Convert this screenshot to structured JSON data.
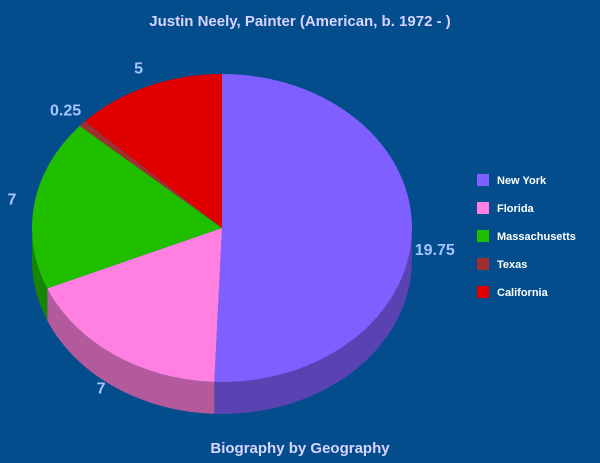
{
  "chart_data": {
    "type": "pie",
    "title": "Justin Neely, Painter (American, b. 1972 - )",
    "footer": "Biography by Geography",
    "categories": [
      "New York",
      "Florida",
      "Massachusetts",
      "Texas",
      "California"
    ],
    "values": [
      19.75,
      7,
      7,
      0.25,
      5
    ],
    "colors": [
      "#7f5fff",
      "#ff80e0",
      "#1fbf00",
      "#a03030",
      "#e00000"
    ],
    "legend": "right"
  }
}
